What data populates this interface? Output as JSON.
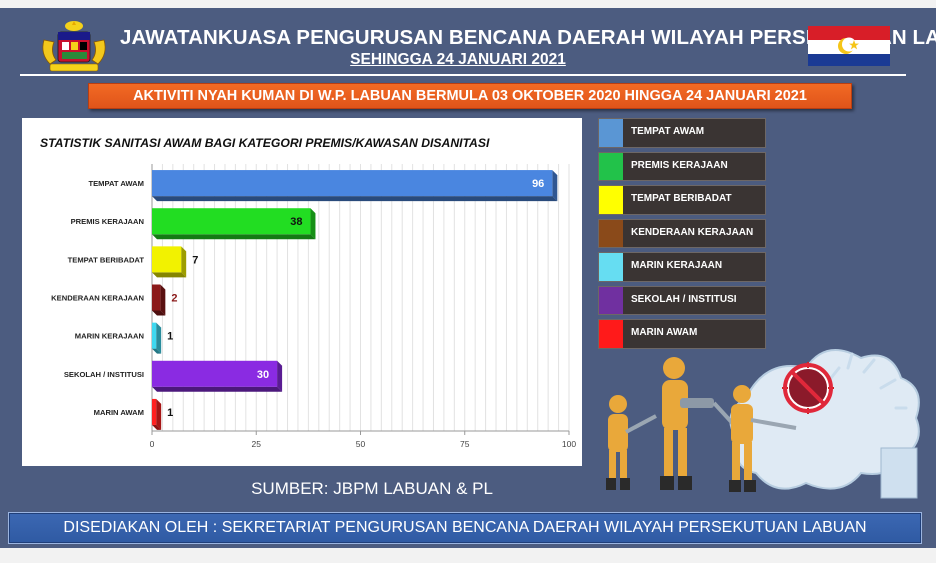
{
  "header": {
    "title": "JAWATANKUASA PENGURUSAN BENCANA DAERAH WILAYAH PERSEKUTUAN  LABUAN",
    "subtitle": "SEHINGGA 24 JANUARI 2021"
  },
  "banner": {
    "text": "AKTIVITI NYAH KUMAN DI W.P. LABUAN BERMULA 03 OKTOBER 2020 HINGGA 24 JANUARI 2021"
  },
  "chart_data": {
    "type": "bar",
    "orientation": "horizontal",
    "title": "STATISTIK SANITASI AWAM BAGI KATEGORI PREMIS/KAWASAN DISANITASI",
    "categories": [
      "TEMPAT AWAM",
      "PREMIS KERAJAAN",
      "TEMPAT BERIBADAT",
      "KENDERAAN KERAJAAN",
      "MARIN KERAJAAN",
      "SEKOLAH / INSTITUSI",
      "MARIN AWAM"
    ],
    "values": [
      96,
      38,
      7,
      2,
      1,
      30,
      1
    ],
    "colors": [
      "#4a86e0",
      "#22dd22",
      "#f2f200",
      "#8b1a1a",
      "#3fd8f0",
      "#8a2be2",
      "#ff2020"
    ],
    "xlim": [
      0,
      100
    ],
    "xticks": [
      0,
      25,
      50,
      75,
      100
    ],
    "grid": true,
    "legend": "right"
  },
  "legend": {
    "items": [
      {
        "label": "TEMPAT AWAM",
        "color": "#5a96d4"
      },
      {
        "label": "PREMIS KERAJAAN",
        "color": "#22c24a"
      },
      {
        "label": "TEMPAT BERIBADAT",
        "color": "#ffff00"
      },
      {
        "label": "KENDERAAN KERAJAAN",
        "color": "#8a4a1a"
      },
      {
        "label": "MARIN KERAJAAN",
        "color": "#66ddf2"
      },
      {
        "label": "SEKOLAH / INSTITUSI",
        "color": "#7030a0"
      },
      {
        "label": "MARIN AWAM",
        "color": "#ff1a1a"
      }
    ]
  },
  "source": {
    "text": "SUMBER: JBPM LABUAN & PL"
  },
  "footer": {
    "text": "DISEDIAKAN OLEH : SEKRETARIAT PENGURUSAN BENCANA DAERAH WILAYAH PERSEKUTUAN LABUAN"
  },
  "icons": {
    "coat_of_arms": "malaysia-coat-of-arms-icon",
    "flag": "labuan-flag-icon",
    "illustration": "sanitation-workers-illustration"
  }
}
